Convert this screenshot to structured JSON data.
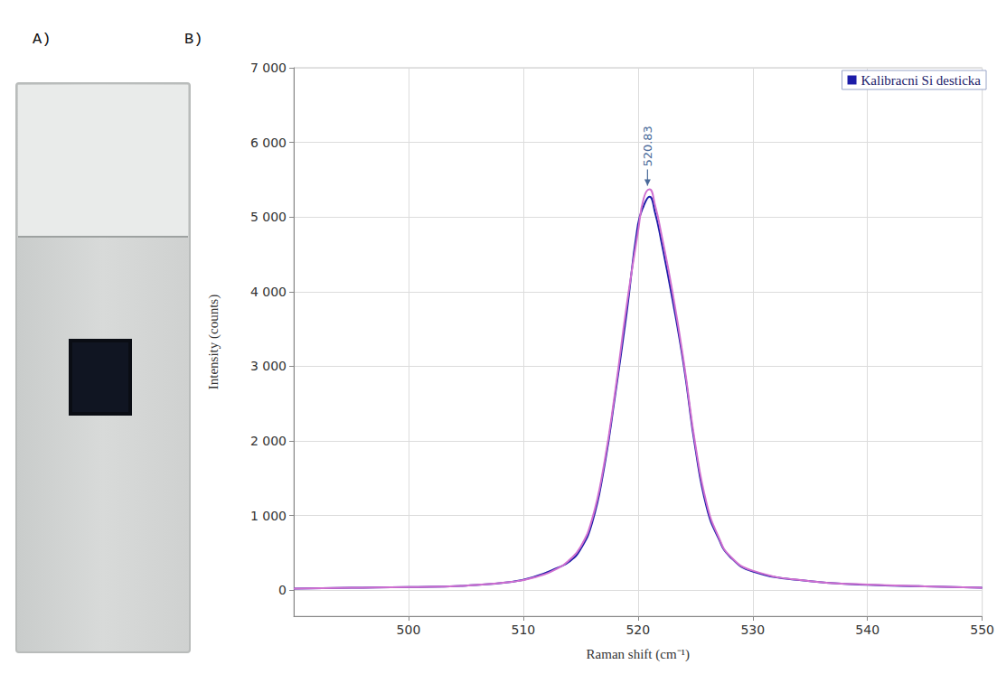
{
  "panel_labels": [
    "A)",
    "B)"
  ],
  "chart_data": {
    "type": "line",
    "xlabel": "Raman shift (cm⁻¹)",
    "ylabel": "Intensity (counts)",
    "x": [
      490,
      495,
      500,
      505,
      509,
      511,
      513,
      514,
      515,
      516,
      517,
      518,
      519,
      520,
      520.5,
      521,
      521.5,
      522,
      523,
      524,
      525,
      526,
      527,
      528,
      530,
      535,
      540,
      545,
      550
    ],
    "series": [
      {
        "name": "Kalibracni Si desticka",
        "color": "#1c1ca8",
        "line_style": "solid",
        "values": [
          20,
          30,
          40,
          60,
          110,
          180,
          300,
          380,
          550,
          900,
          1600,
          2600,
          3700,
          4900,
          5150,
          5270,
          5050,
          4700,
          3900,
          3000,
          1900,
          1100,
          700,
          450,
          250,
          120,
          70,
          50,
          30
        ]
      },
      {
        "color": "#d070d0",
        "line_style": "solid",
        "values": [
          20,
          30,
          40,
          60,
          110,
          170,
          290,
          400,
          580,
          950,
          1650,
          2650,
          3800,
          4800,
          5250,
          5370,
          5150,
          4800,
          4000,
          3050,
          1950,
          1150,
          720,
          460,
          260,
          120,
          75,
          50,
          30
        ]
      }
    ],
    "annotations": [
      {
        "x": 520.83,
        "text": "520.83"
      }
    ],
    "xlim": [
      490,
      550
    ],
    "xticks": [
      500,
      510,
      520,
      530,
      540,
      550
    ],
    "ylim": [
      -350,
      7000
    ],
    "yticks": [
      0,
      {
        "value": 1000,
        "label": "1 000"
      },
      {
        "value": 2000,
        "label": "2 000"
      },
      {
        "value": 3000,
        "label": "3 000"
      },
      {
        "value": 4000,
        "label": "4 000"
      },
      {
        "value": 5000,
        "label": "5 000"
      },
      {
        "value": 6000,
        "label": "6 000"
      },
      {
        "value": 7000,
        "label": "7 000"
      }
    ],
    "grid": true,
    "legend": "upper right"
  }
}
